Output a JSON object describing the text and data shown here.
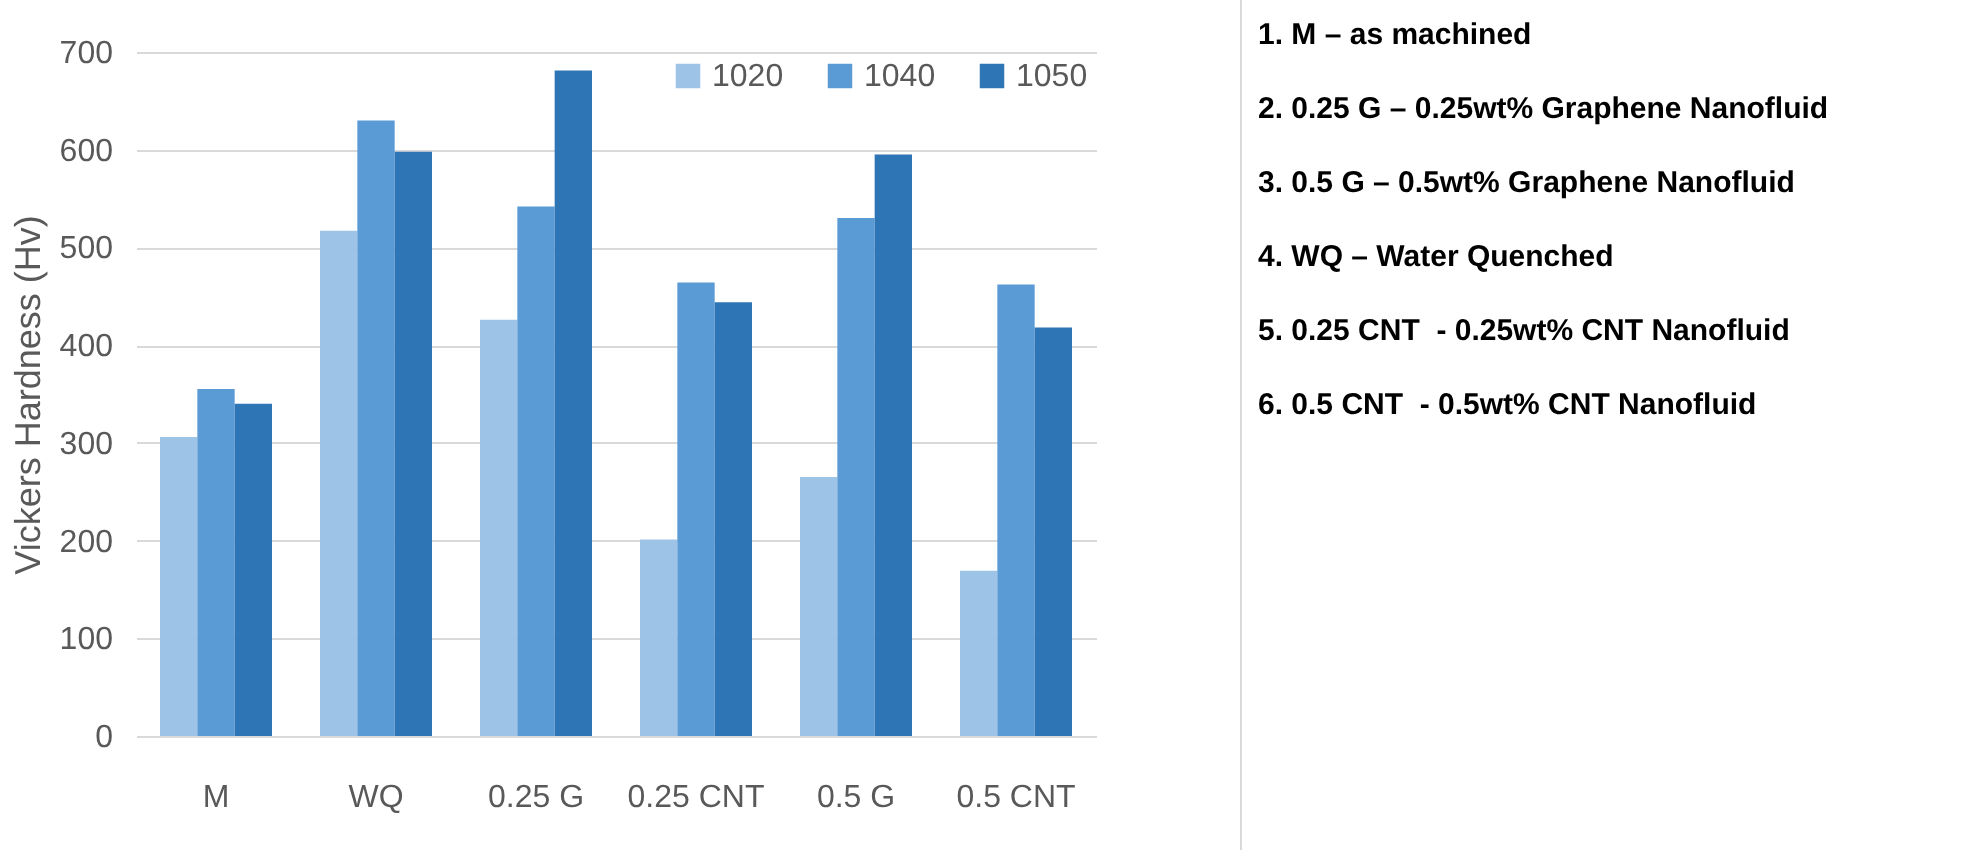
{
  "chart_data": {
    "type": "bar",
    "ylabel": "Vickers Hardness (Hv)",
    "categories": [
      "M",
      "WQ",
      "0.25 G",
      "0.25 CNT",
      "0.5 G",
      "0.5 CNT"
    ],
    "series": [
      {
        "name": "1020",
        "color": "#9dc3e6",
        "values": [
          306,
          517,
          426,
          201,
          265,
          169
        ]
      },
      {
        "name": "1040",
        "color": "#5b9bd5",
        "values": [
          355,
          630,
          542,
          464,
          530,
          462
        ]
      },
      {
        "name": "1050",
        "color": "#2e75b6",
        "values": [
          340,
          598,
          681,
          444,
          595,
          418
        ]
      }
    ],
    "ylim": [
      0,
      700
    ],
    "yticks": [
      0,
      100,
      200,
      300,
      400,
      500,
      600,
      700
    ],
    "grid": "y",
    "legend": "top right",
    "annotations": [
      "1. M – as machined",
      "2. 0.25 G – 0.25wt% Graphene Nanofluid",
      "3. 0.5 G – 0.5wt% Graphene Nanofluid",
      "4. WQ – Water Quenched",
      "5. 0.25 CNT  - 0.25wt% CNT Nanofluid",
      "6. 0.5 CNT  - 0.5wt% CNT Nanofluid"
    ]
  }
}
